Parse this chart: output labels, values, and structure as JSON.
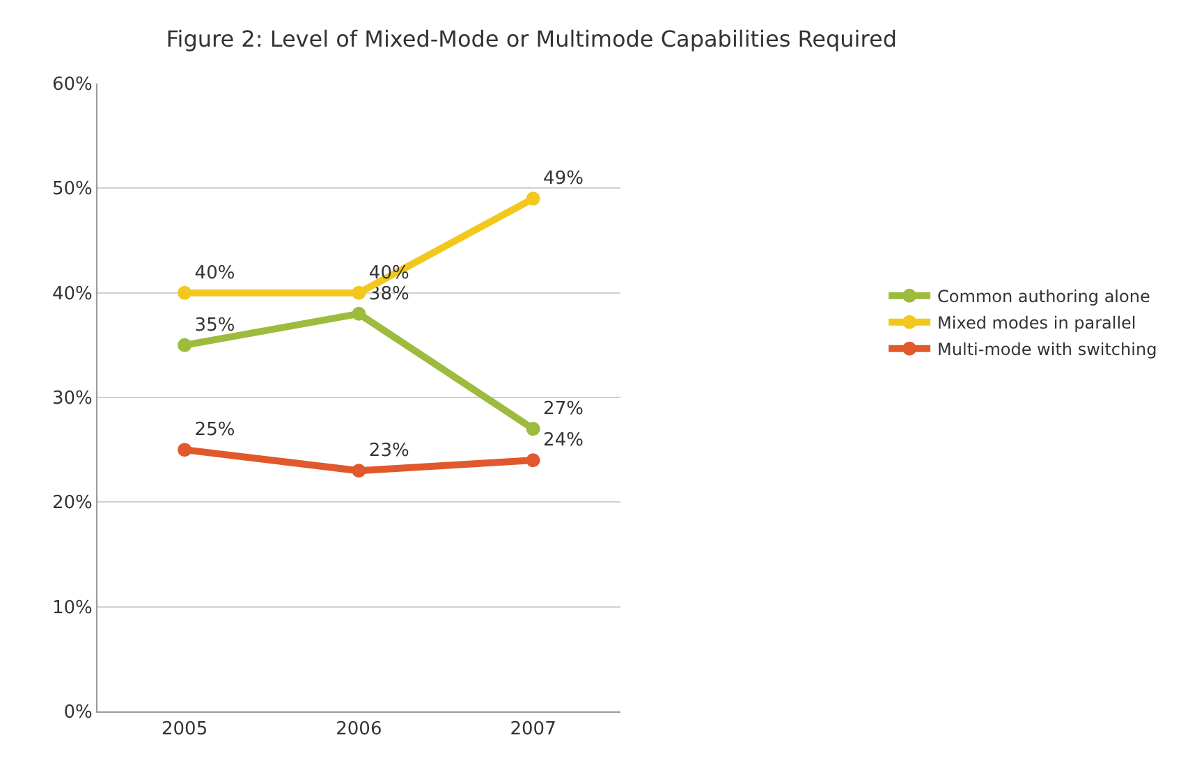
{
  "chart_data": {
    "type": "line",
    "title": "Figure 2: Level of Mixed-Mode or Multimode Capabilities Required",
    "categories": [
      "2005",
      "2006",
      "2007"
    ],
    "series": [
      {
        "name": "Common authoring alone",
        "color": "#9dbb3c",
        "values": [
          35,
          38,
          27
        ],
        "value_labels": [
          "35%",
          "38%",
          "27%"
        ]
      },
      {
        "name": "Mixed modes in parallel",
        "color": "#f2c81e",
        "values": [
          40,
          40,
          49
        ],
        "value_labels": [
          "40%",
          "40%",
          "49%"
        ]
      },
      {
        "name": "Multi-mode with switching",
        "color": "#e0582b",
        "values": [
          25,
          23,
          24
        ],
        "value_labels": [
          "25%",
          "23%",
          "24%"
        ]
      }
    ],
    "ylim": [
      0,
      60
    ],
    "yticks": [
      {
        "value": 0,
        "label": "0%"
      },
      {
        "value": 10,
        "label": "10%"
      },
      {
        "value": 20,
        "label": "20%"
      },
      {
        "value": 30,
        "label": "30%"
      },
      {
        "value": 40,
        "label": "40%"
      },
      {
        "value": 50,
        "label": "50%"
      },
      {
        "value": 60,
        "label": "60%"
      }
    ],
    "grid": "y",
    "legend": "right",
    "marker": "circle",
    "line_style": "solid"
  }
}
